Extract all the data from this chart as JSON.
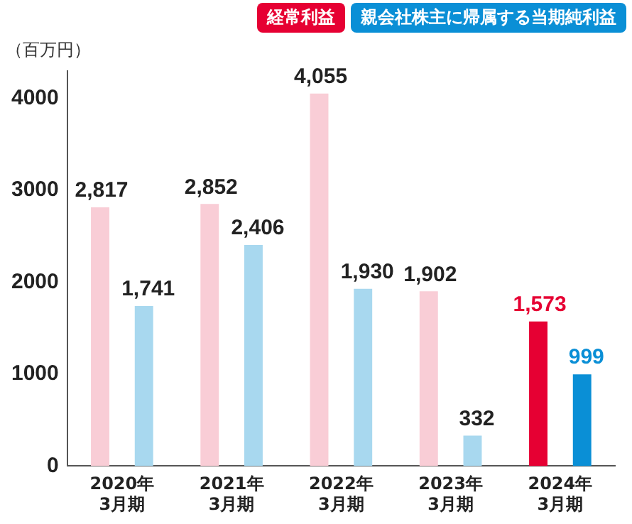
{
  "chart_data": {
    "type": "bar",
    "ylabel": "（百万円）",
    "categories": [
      "2020年\n3月期",
      "2021年\n3月期",
      "2022年\n3月期",
      "2023年\n3月期",
      "2024年\n3月期"
    ],
    "series": [
      {
        "name": "経常利益",
        "color": "#e60033",
        "colors": [
          "#f9cdd6",
          "#f9cdd6",
          "#f9cdd6",
          "#f9cdd6",
          "#e60033"
        ],
        "values": [
          2817,
          2852,
          4055,
          1902,
          1573
        ],
        "value_labels": [
          "2,817",
          "2,852",
          "4,055",
          "1,902",
          "1,573"
        ]
      },
      {
        "name": "親会社株主に帰属する当期純利益",
        "color": "#0a8fd6",
        "colors": [
          "#a8d8ef",
          "#a8d8ef",
          "#a8d8ef",
          "#a8d8ef",
          "#0a8fd6"
        ],
        "values": [
          1741,
          2406,
          1930,
          332,
          999
        ],
        "value_labels": [
          "1,741",
          "2,406",
          "1,930",
          "332",
          "999"
        ]
      }
    ],
    "ylim": [
      0,
      4300
    ],
    "yticks": [
      0,
      1000,
      2000,
      3000,
      4000
    ],
    "grid": false,
    "legend": "top right"
  }
}
